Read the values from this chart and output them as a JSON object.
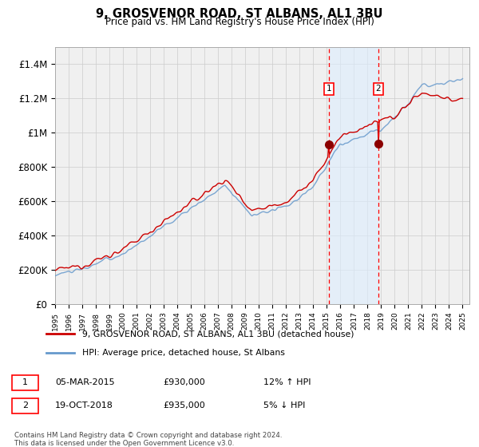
{
  "title": "9, GROSVENOR ROAD, ST ALBANS, AL1 3BU",
  "subtitle": "Price paid vs. HM Land Registry's House Price Index (HPI)",
  "ylabel_ticks": [
    "£0",
    "£200K",
    "£400K",
    "£600K",
    "£800K",
    "£1M",
    "£1.2M",
    "£1.4M"
  ],
  "ylim": [
    0,
    1500000
  ],
  "yticks": [
    0,
    200000,
    400000,
    600000,
    800000,
    1000000,
    1200000,
    1400000
  ],
  "x_start_year": 1995,
  "x_end_year": 2025,
  "hpi_color": "#6699cc",
  "house_color": "#cc0000",
  "legend_house": "9, GROSVENOR ROAD, ST ALBANS, AL1 3BU (detached house)",
  "legend_hpi": "HPI: Average price, detached house, St Albans",
  "marker1_year": 2015.17,
  "marker1_value": 930000,
  "marker1_label": "1",
  "marker2_year": 2018.8,
  "marker2_value": 935000,
  "marker2_label": "2",
  "annotation1_date": "05-MAR-2015",
  "annotation1_price": "£930,000",
  "annotation1_hpi": "12% ↑ HPI",
  "annotation2_date": "19-OCT-2018",
  "annotation2_price": "£935,000",
  "annotation2_hpi": "5% ↓ HPI",
  "footnote1": "Contains HM Land Registry data © Crown copyright and database right 2024.",
  "footnote2": "This data is licensed under the Open Government Licence v3.0.",
  "background_color": "#ffffff",
  "plot_bg_color": "#f0f0f0",
  "grid_color": "#cccccc",
  "shaded_region_color": "#ddeeff"
}
